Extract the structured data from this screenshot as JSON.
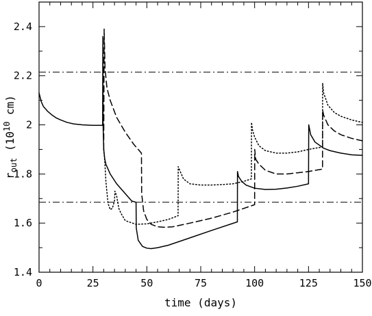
{
  "chart_data": {
    "type": "line",
    "title": "",
    "xlabel": "time (days)",
    "ylabel": {
      "base": "r",
      "subscript": "out",
      "pre": " (10",
      "superscript": "10",
      "post": " cm)"
    },
    "xlim": [
      0,
      150
    ],
    "ylim": [
      1.4,
      2.5
    ],
    "xticks": [
      0,
      25,
      50,
      75,
      100,
      125,
      150
    ],
    "xtick_labels": [
      "0",
      "25",
      "50",
      "75",
      "100",
      "125",
      "150"
    ],
    "yticks": [
      1.4,
      1.6,
      1.8,
      2.0,
      2.2,
      2.4
    ],
    "ytick_labels": [
      "1.4",
      "1.6",
      "1.8",
      "2",
      "2.2",
      "2.4"
    ],
    "grid": false,
    "legend": "none",
    "reference_lines": [
      {
        "orientation": "horizontal",
        "y": 2.215,
        "style": "dash-dot"
      },
      {
        "orientation": "horizontal",
        "y": 1.685,
        "style": "dash-dot"
      }
    ],
    "series": [
      {
        "style": "solid",
        "x": [
          0,
          1,
          2,
          4,
          6,
          8,
          10,
          13,
          16,
          20,
          25,
          29.5,
          29.6,
          29.7,
          30,
          30.5,
          31,
          33,
          36,
          40,
          43,
          45,
          45.1,
          46,
          48,
          50,
          52,
          55,
          60,
          70,
          80,
          92,
          92.05,
          92.5,
          94,
          96,
          100,
          105,
          110,
          115,
          120,
          125,
          125.1,
          126,
          128,
          132,
          135,
          140,
          145,
          150
        ],
        "y": [
          2.13,
          2.095,
          2.075,
          2.055,
          2.04,
          2.028,
          2.02,
          2.01,
          2.004,
          2.0,
          1.998,
          1.998,
          2.36,
          2.0,
          1.9,
          1.86,
          1.84,
          1.8,
          1.76,
          1.72,
          1.69,
          1.685,
          1.58,
          1.53,
          1.505,
          1.498,
          1.496,
          1.5,
          1.51,
          1.54,
          1.57,
          1.605,
          1.81,
          1.79,
          1.77,
          1.755,
          1.742,
          1.737,
          1.738,
          1.743,
          1.75,
          1.76,
          2.0,
          1.96,
          1.93,
          1.905,
          1.895,
          1.885,
          1.878,
          1.876
        ]
      },
      {
        "style": "dashed",
        "x": [
          30,
          30.2,
          30.6,
          31.5,
          33,
          36,
          40,
          44,
          47.5,
          47.6,
          48.5,
          50,
          52,
          55,
          58,
          62,
          70,
          80,
          90,
          100,
          100.05,
          100.5,
          102,
          105,
          110,
          115,
          120,
          125,
          131.5,
          131.55,
          132,
          134,
          137,
          140,
          145,
          150
        ],
        "y": [
          1.9,
          2.39,
          2.23,
          2.15,
          2.1,
          2.03,
          1.97,
          1.92,
          1.885,
          1.72,
          1.65,
          1.615,
          1.595,
          1.585,
          1.583,
          1.585,
          1.6,
          1.62,
          1.645,
          1.675,
          1.9,
          1.86,
          1.84,
          1.815,
          1.8,
          1.8,
          1.805,
          1.81,
          1.82,
          2.06,
          2.04,
          2.0,
          1.975,
          1.96,
          1.945,
          1.935
        ]
      },
      {
        "style": "dotted",
        "x": [
          30,
          30.5,
          31,
          32,
          33,
          34,
          35,
          35.2,
          36,
          37,
          38,
          40,
          45,
          50,
          55,
          60,
          64.5,
          64.55,
          65,
          67,
          70,
          75,
          80,
          85,
          90,
          95,
          98.5,
          98.55,
          99,
          100,
          102,
          105,
          110,
          115,
          120,
          125,
          131.5,
          131.55,
          132,
          134,
          137,
          140,
          145,
          150
        ],
        "y": [
          1.9,
          1.85,
          1.77,
          1.68,
          1.655,
          1.66,
          1.69,
          1.73,
          1.71,
          1.66,
          1.64,
          1.61,
          1.595,
          1.597,
          1.605,
          1.615,
          1.63,
          1.83,
          1.82,
          1.78,
          1.76,
          1.755,
          1.755,
          1.757,
          1.76,
          1.77,
          1.78,
          2.01,
          1.98,
          1.95,
          1.915,
          1.895,
          1.885,
          1.885,
          1.89,
          1.9,
          1.91,
          2.17,
          2.13,
          2.08,
          2.05,
          2.035,
          2.02,
          2.01
        ]
      }
    ]
  }
}
